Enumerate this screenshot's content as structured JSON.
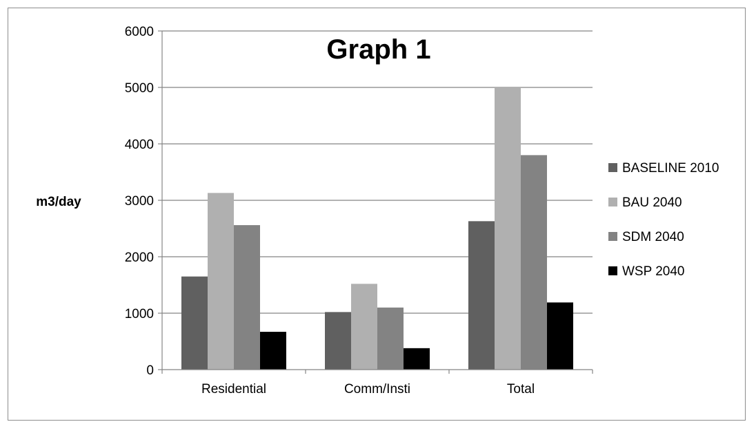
{
  "chart_data": {
    "type": "bar",
    "title": "Graph 1",
    "xlabel": "",
    "ylabel": "m3/day",
    "ylim": [
      0,
      6000
    ],
    "yticks": [
      0,
      1000,
      2000,
      3000,
      4000,
      5000,
      6000
    ],
    "grid": true,
    "legend_position": "right",
    "categories": [
      "Residential",
      "Comm/Insti",
      "Total"
    ],
    "series": [
      {
        "name": "BASELINE 2010",
        "color": "#606060",
        "values": [
          1650,
          1020,
          2630
        ]
      },
      {
        "name": "BAU 2040",
        "color": "#b0b0b0",
        "values": [
          3130,
          1520,
          5000
        ]
      },
      {
        "name": "SDM 2040",
        "color": "#838383",
        "values": [
          2560,
          1100,
          3800
        ]
      },
      {
        "name": "WSP 2040",
        "color": "#000000",
        "values": [
          670,
          380,
          1190
        ]
      }
    ]
  }
}
